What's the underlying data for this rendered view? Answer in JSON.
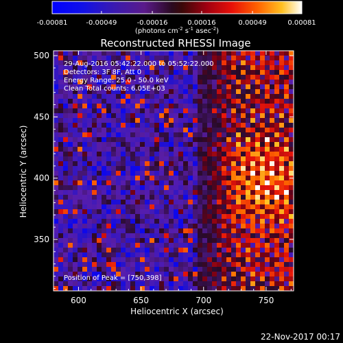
{
  "chart_data": {
    "type": "heatmap",
    "title": "Reconstructed RHESSI Image",
    "xlabel": "Heliocentric X (arcsec)",
    "ylabel": "Heliocentric Y (arcsec)",
    "xlim": [
      580,
      772
    ],
    "ylim": [
      308,
      504
    ],
    "x_ticks": [
      600,
      650,
      700,
      750
    ],
    "y_ticks": [
      350,
      400,
      450,
      500
    ],
    "colorbar": {
      "min": -0.00081,
      "max": 0.00081,
      "tick_values": [
        -0.00081,
        -0.00049,
        -0.00016,
        0.00016,
        0.00049,
        0.00081
      ],
      "tick_labels": [
        "-0.00081",
        "-0.00049",
        "-0.00016",
        "0.00016",
        "0.00049",
        "0.00081"
      ],
      "unit_label_parts": [
        "(photons cm",
        "-2",
        " s",
        "-1",
        " asec",
        "-2",
        ")"
      ]
    },
    "annotations": [
      "29-Aug-2016 05:42:22.000 to 05:52:22.000",
      "Detectors: 3F 8F, Att 0",
      "Energy Range: 25.0 - 50.0 keV",
      "Clean     Total counts: 6.05E+03"
    ],
    "peak_label": "Position of Peak = [750,398]",
    "peak": {
      "x": 750,
      "y": 398
    },
    "bright_region": {
      "x_start": 700,
      "x_end": 772
    },
    "footer_date": "22-Nov-2017 00:17"
  },
  "colors": {
    "background": "#000000",
    "text": "#ffffff"
  }
}
